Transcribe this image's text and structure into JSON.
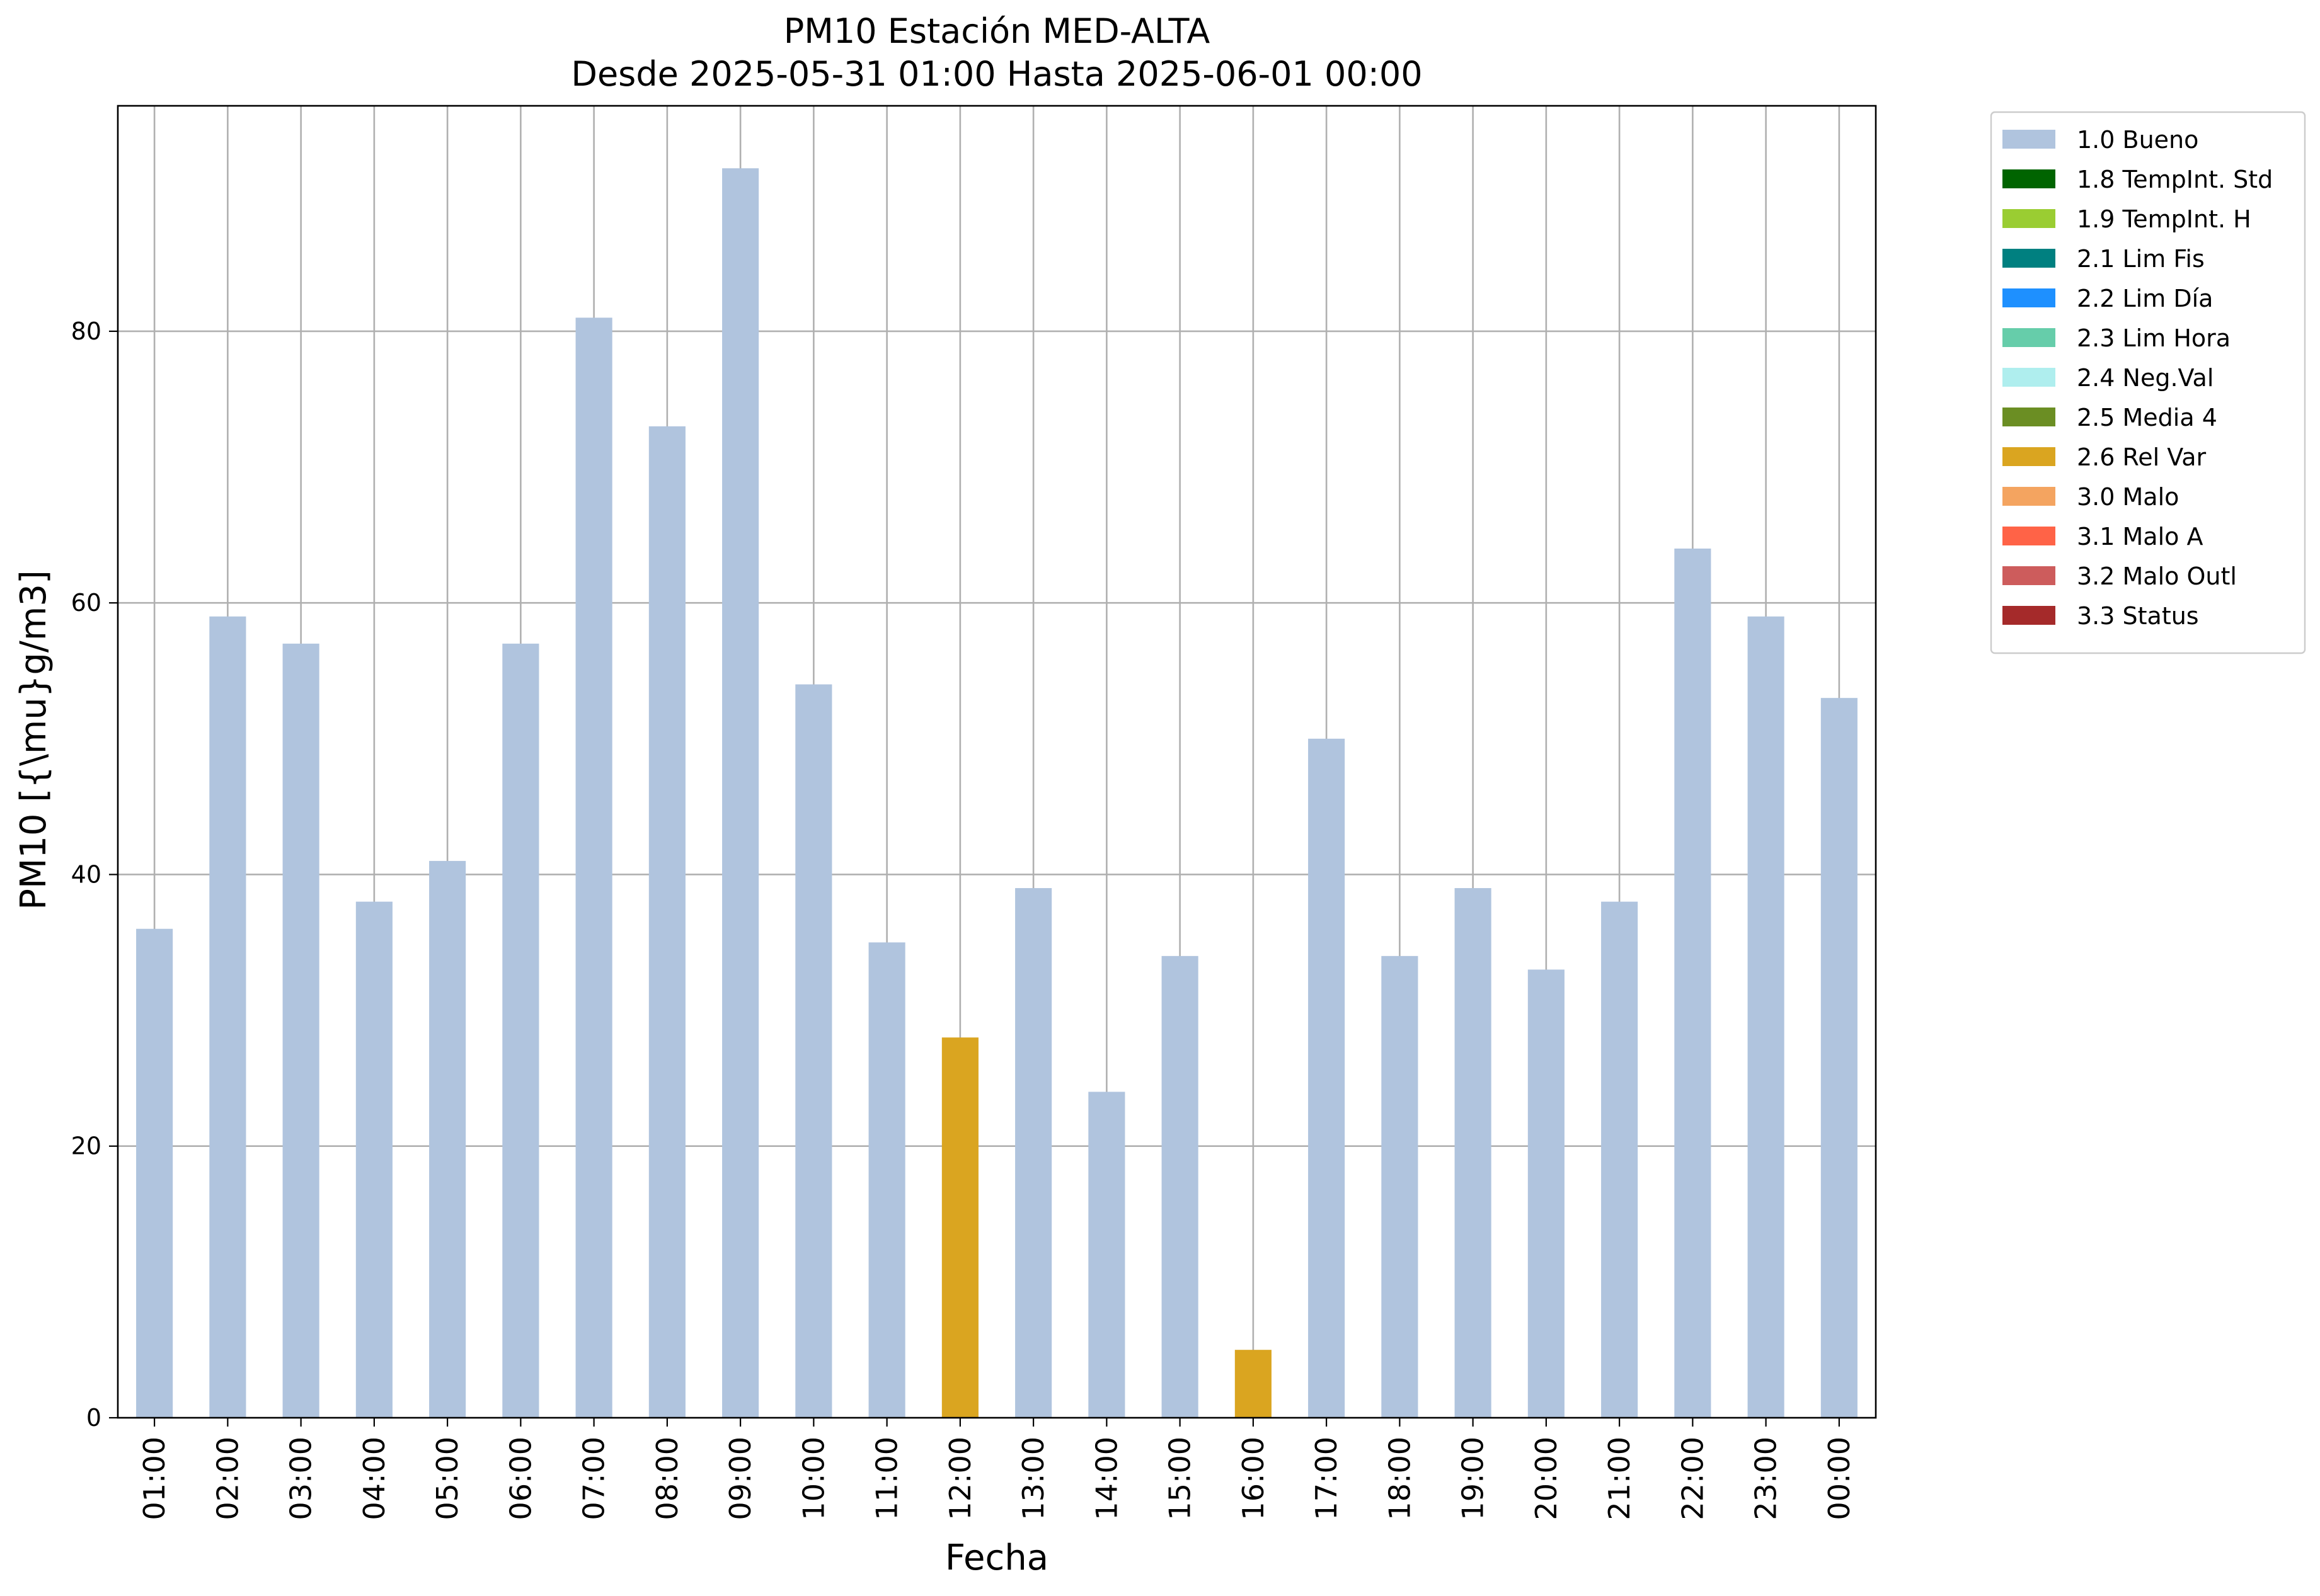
{
  "chart_data": {
    "type": "bar",
    "title": "PM10 Estación MED-ALTA",
    "subtitle": "Desde 2025-05-31 01:00 Hasta 2025-06-01 00:00",
    "xlabel": "Fecha",
    "ylabel": "PM10 [{\\mu}g/m3]",
    "ylim": [
      0,
      96.6
    ],
    "yticks": [
      0,
      20,
      40,
      60,
      80
    ],
    "grid": true,
    "legend_position": "outside-top-right",
    "categories": [
      "01:00",
      "02:00",
      "03:00",
      "04:00",
      "05:00",
      "06:00",
      "07:00",
      "08:00",
      "09:00",
      "10:00",
      "11:00",
      "12:00",
      "13:00",
      "14:00",
      "15:00",
      "16:00",
      "17:00",
      "18:00",
      "19:00",
      "20:00",
      "21:00",
      "22:00",
      "23:00",
      "00:00"
    ],
    "values": [
      36,
      59,
      57,
      38,
      41,
      57,
      81,
      73,
      92,
      54,
      35,
      28,
      39,
      24,
      34,
      5,
      50,
      34,
      39,
      33,
      38,
      64,
      59,
      53
    ],
    "bar_flags": [
      "1.0 Bueno",
      "1.0 Bueno",
      "1.0 Bueno",
      "1.0 Bueno",
      "1.0 Bueno",
      "1.0 Bueno",
      "1.0 Bueno",
      "1.0 Bueno",
      "1.0 Bueno",
      "1.0 Bueno",
      "1.0 Bueno",
      "2.6 Rel Var",
      "1.0 Bueno",
      "1.0 Bueno",
      "1.0 Bueno",
      "2.6 Rel Var",
      "1.0 Bueno",
      "1.0 Bueno",
      "1.0 Bueno",
      "1.0 Bueno",
      "1.0 Bueno",
      "1.0 Bueno",
      "1.0 Bueno",
      "1.0 Bueno"
    ],
    "legend": [
      {
        "label": "1.0 Bueno",
        "color": "#b0c4de"
      },
      {
        "label": "1.8 TempInt. Std",
        "color": "#006400"
      },
      {
        "label": "1.9 TempInt. H",
        "color": "#9acd32"
      },
      {
        "label": "2.1 Lim Fis",
        "color": "#008080"
      },
      {
        "label": "2.2 Lim Día",
        "color": "#1e90ff"
      },
      {
        "label": "2.3 Lim Hora",
        "color": "#66cdaa"
      },
      {
        "label": "2.4 Neg.Val",
        "color": "#afeeee"
      },
      {
        "label": "2.5 Media 4",
        "color": "#6b8e23"
      },
      {
        "label": "2.6 Rel Var",
        "color": "#daa520"
      },
      {
        "label": "3.0 Malo",
        "color": "#f4a460"
      },
      {
        "label": "3.1 Malo A",
        "color": "#ff6347"
      },
      {
        "label": "3.2 Malo Outl",
        "color": "#cd5c5c"
      },
      {
        "label": "3.3 Status",
        "color": "#a52a2a"
      }
    ]
  }
}
